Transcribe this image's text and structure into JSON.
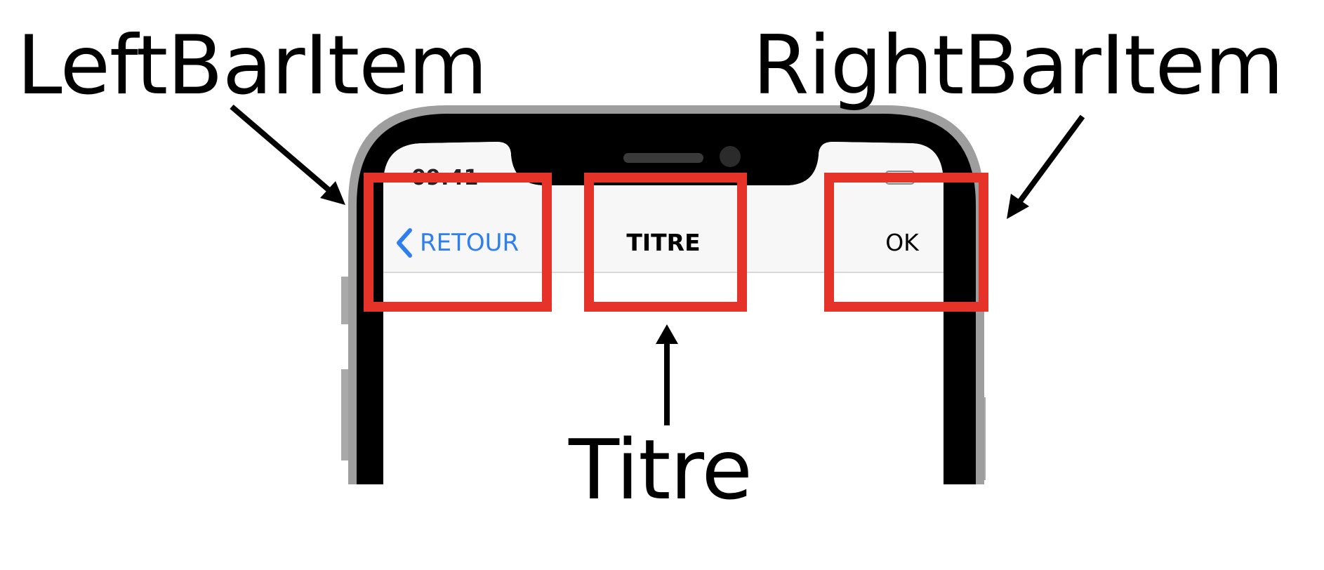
{
  "callouts": {
    "left": "LeftBarItem",
    "right": "RightBarItem",
    "title": "Titre"
  },
  "phone": {
    "status_time": "09:41",
    "nav": {
      "back_label": "RETOUR",
      "title": "TITRE",
      "right_label": "OK"
    }
  },
  "colors": {
    "highlight": "#e5332a",
    "back_accent": "#2f7ff0",
    "bezel": "#000000",
    "frame": "#9e9e9e",
    "nav_background": "#f7f7f7"
  }
}
